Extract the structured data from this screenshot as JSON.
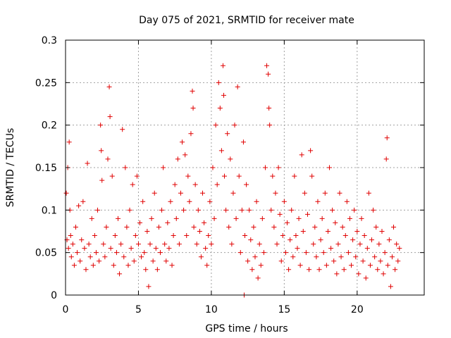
{
  "chart_data": {
    "type": "scatter",
    "title": "Day 075 of 2021, SRMTID for receiver mate",
    "xlabel": "GPS time / hours",
    "ylabel": "SRMTID / TECUs",
    "xlim": [
      0,
      24.6
    ],
    "ylim": [
      0,
      0.3
    ],
    "xticks": [
      0,
      5,
      10,
      15,
      20
    ],
    "xtick_labels": [
      "0",
      "5",
      "10",
      "15",
      "20"
    ],
    "yticks": [
      0,
      0.05,
      0.1,
      0.15,
      0.2,
      0.25,
      0.3
    ],
    "ytick_labels": [
      "0",
      "0.05",
      "0.1",
      "0.15",
      "0.2",
      "0.25",
      "0.3"
    ],
    "grid": true,
    "marker": "+",
    "marker_color": "#e00000",
    "series": [
      {
        "name": "SRMTID",
        "points": [
          [
            0.05,
            0.12
          ],
          [
            0.1,
            0.065
          ],
          [
            0.15,
            0.15
          ],
          [
            0.2,
            0.055
          ],
          [
            0.25,
            0.18
          ],
          [
            0.3,
            0.1
          ],
          [
            0.35,
            0.07
          ],
          [
            0.4,
            0.045
          ],
          [
            0.5,
            0.06
          ],
          [
            0.6,
            0.035
          ],
          [
            0.7,
            0.08
          ],
          [
            0.8,
            0.05
          ],
          [
            0.9,
            0.105
          ],
          [
            1.0,
            0.04
          ],
          [
            1.1,
            0.065
          ],
          [
            1.2,
            0.11
          ],
          [
            1.3,
            0.055
          ],
          [
            1.4,
            0.03
          ],
          [
            1.5,
            0.155
          ],
          [
            1.6,
            0.06
          ],
          [
            1.7,
            0.045
          ],
          [
            1.8,
            0.09
          ],
          [
            1.9,
            0.035
          ],
          [
            2.0,
            0.07
          ],
          [
            2.1,
            0.05
          ],
          [
            2.2,
            0.1
          ],
          [
            2.3,
            0.04
          ],
          [
            2.4,
            0.2
          ],
          [
            2.45,
            0.17
          ],
          [
            2.5,
            0.135
          ],
          [
            2.6,
            0.06
          ],
          [
            2.7,
            0.045
          ],
          [
            2.8,
            0.08
          ],
          [
            2.9,
            0.16
          ],
          [
            3.0,
            0.245
          ],
          [
            3.05,
            0.21
          ],
          [
            3.1,
            0.055
          ],
          [
            3.2,
            0.14
          ],
          [
            3.3,
            0.035
          ],
          [
            3.4,
            0.07
          ],
          [
            3.5,
            0.05
          ],
          [
            3.6,
            0.09
          ],
          [
            3.7,
            0.025
          ],
          [
            3.8,
            0.06
          ],
          [
            3.9,
            0.195
          ],
          [
            4.0,
            0.045
          ],
          [
            4.1,
            0.15
          ],
          [
            4.2,
            0.08
          ],
          [
            4.3,
            0.035
          ],
          [
            4.4,
            0.1
          ],
          [
            4.5,
            0.055
          ],
          [
            4.6,
            0.13
          ],
          [
            4.7,
            0.04
          ],
          [
            4.8,
            0.07
          ],
          [
            4.9,
            0.14
          ],
          [
            5.0,
            0.06
          ],
          [
            5.1,
            0.085
          ],
          [
            5.2,
            0.045
          ],
          [
            5.3,
            0.11
          ],
          [
            5.4,
            0.05
          ],
          [
            5.5,
            0.03
          ],
          [
            5.6,
            0.075
          ],
          [
            5.7,
            0.01
          ],
          [
            5.8,
            0.06
          ],
          [
            5.9,
            0.09
          ],
          [
            6.0,
            0.04
          ],
          [
            6.1,
            0.12
          ],
          [
            6.2,
            0.055
          ],
          [
            6.3,
            0.03
          ],
          [
            6.4,
            0.08
          ],
          [
            6.5,
            0.05
          ],
          [
            6.6,
            0.1
          ],
          [
            6.7,
            0.15
          ],
          [
            6.8,
            0.06
          ],
          [
            6.9,
            0.04
          ],
          [
            7.0,
            0.085
          ],
          [
            7.1,
            0.055
          ],
          [
            7.2,
            0.11
          ],
          [
            7.3,
            0.035
          ],
          [
            7.4,
            0.07
          ],
          [
            7.5,
            0.13
          ],
          [
            7.6,
            0.09
          ],
          [
            7.7,
            0.16
          ],
          [
            7.8,
            0.06
          ],
          [
            7.9,
            0.12
          ],
          [
            8.0,
            0.18
          ],
          [
            8.1,
            0.1
          ],
          [
            8.2,
            0.165
          ],
          [
            8.3,
            0.07
          ],
          [
            8.4,
            0.14
          ],
          [
            8.5,
            0.11
          ],
          [
            8.6,
            0.19
          ],
          [
            8.7,
            0.24
          ],
          [
            8.75,
            0.22
          ],
          [
            8.8,
            0.08
          ],
          [
            8.9,
            0.13
          ],
          [
            9.0,
            0.06
          ],
          [
            9.1,
            0.1
          ],
          [
            9.2,
            0.075
          ],
          [
            9.3,
            0.045
          ],
          [
            9.4,
            0.12
          ],
          [
            9.5,
            0.085
          ],
          [
            9.6,
            0.055
          ],
          [
            9.7,
            0.035
          ],
          [
            9.8,
            0.07
          ],
          [
            9.9,
            0.11
          ],
          [
            10.0,
            0.06
          ],
          [
            10.1,
            0.15
          ],
          [
            10.2,
            0.09
          ],
          [
            10.3,
            0.2
          ],
          [
            10.4,
            0.13
          ],
          [
            10.5,
            0.25
          ],
          [
            10.6,
            0.22
          ],
          [
            10.7,
            0.17
          ],
          [
            10.8,
            0.27
          ],
          [
            10.85,
            0.235
          ],
          [
            10.9,
            0.14
          ],
          [
            11.0,
            0.1
          ],
          [
            11.1,
            0.19
          ],
          [
            11.2,
            0.08
          ],
          [
            11.3,
            0.16
          ],
          [
            11.4,
            0.06
          ],
          [
            11.5,
            0.12
          ],
          [
            11.6,
            0.2
          ],
          [
            11.7,
            0.09
          ],
          [
            11.8,
            0.245
          ],
          [
            11.9,
            0.14
          ],
          [
            12.0,
            0.05
          ],
          [
            12.1,
            0.1
          ],
          [
            12.2,
            0.18
          ],
          [
            12.25,
            0.0
          ],
          [
            12.3,
            0.07
          ],
          [
            12.4,
            0.13
          ],
          [
            12.5,
            0.04
          ],
          [
            12.6,
            0.1
          ],
          [
            12.7,
            0.065
          ],
          [
            12.8,
            0.03
          ],
          [
            12.9,
            0.08
          ],
          [
            13.0,
            0.045
          ],
          [
            13.1,
            0.11
          ],
          [
            13.2,
            0.02
          ],
          [
            13.3,
            0.06
          ],
          [
            13.4,
            0.035
          ],
          [
            13.5,
            0.09
          ],
          [
            13.6,
            0.05
          ],
          [
            13.7,
            0.15
          ],
          [
            13.8,
            0.27
          ],
          [
            13.9,
            0.26
          ],
          [
            13.95,
            0.22
          ],
          [
            14.0,
            0.2
          ],
          [
            14.1,
            0.1
          ],
          [
            14.2,
            0.14
          ],
          [
            14.3,
            0.08
          ],
          [
            14.4,
            0.12
          ],
          [
            14.5,
            0.06
          ],
          [
            14.6,
            0.15
          ],
          [
            14.7,
            0.095
          ],
          [
            14.8,
            0.04
          ],
          [
            14.9,
            0.07
          ],
          [
            15.0,
            0.11
          ],
          [
            15.1,
            0.05
          ],
          [
            15.2,
            0.085
          ],
          [
            15.3,
            0.03
          ],
          [
            15.4,
            0.065
          ],
          [
            15.5,
            0.1
          ],
          [
            15.6,
            0.045
          ],
          [
            15.7,
            0.14
          ],
          [
            15.8,
            0.07
          ],
          [
            15.9,
            0.055
          ],
          [
            16.0,
            0.09
          ],
          [
            16.1,
            0.035
          ],
          [
            16.2,
            0.165
          ],
          [
            16.3,
            0.075
          ],
          [
            16.4,
            0.12
          ],
          [
            16.5,
            0.05
          ],
          [
            16.6,
            0.095
          ],
          [
            16.7,
            0.03
          ],
          [
            16.8,
            0.17
          ],
          [
            16.9,
            0.14
          ],
          [
            17.0,
            0.06
          ],
          [
            17.1,
            0.08
          ],
          [
            17.2,
            0.045
          ],
          [
            17.3,
            0.11
          ],
          [
            17.4,
            0.03
          ],
          [
            17.5,
            0.065
          ],
          [
            17.6,
            0.09
          ],
          [
            17.7,
            0.05
          ],
          [
            17.8,
            0.12
          ],
          [
            17.9,
            0.035
          ],
          [
            18.0,
            0.075
          ],
          [
            18.1,
            0.15
          ],
          [
            18.2,
            0.055
          ],
          [
            18.3,
            0.1
          ],
          [
            18.4,
            0.04
          ],
          [
            18.5,
            0.085
          ],
          [
            18.6,
            0.025
          ],
          [
            18.7,
            0.06
          ],
          [
            18.8,
            0.12
          ],
          [
            18.9,
            0.045
          ],
          [
            19.0,
            0.08
          ],
          [
            19.1,
            0.03
          ],
          [
            19.2,
            0.07
          ],
          [
            19.3,
            0.11
          ],
          [
            19.4,
            0.05
          ],
          [
            19.5,
            0.09
          ],
          [
            19.6,
            0.035
          ],
          [
            19.7,
            0.065
          ],
          [
            19.8,
            0.1
          ],
          [
            19.9,
            0.045
          ],
          [
            20.0,
            0.075
          ],
          [
            20.1,
            0.025
          ],
          [
            20.2,
            0.06
          ],
          [
            20.3,
            0.09
          ],
          [
            20.4,
            0.04
          ],
          [
            20.5,
            0.07
          ],
          [
            20.6,
            0.02
          ],
          [
            20.7,
            0.055
          ],
          [
            20.8,
            0.12
          ],
          [
            20.9,
            0.035
          ],
          [
            21.0,
            0.065
          ],
          [
            21.1,
            0.1
          ],
          [
            21.2,
            0.045
          ],
          [
            21.3,
            0.08
          ],
          [
            21.4,
            0.03
          ],
          [
            21.5,
            0.06
          ],
          [
            21.6,
            0.04
          ],
          [
            21.7,
            0.075
          ],
          [
            21.8,
            0.025
          ],
          [
            21.9,
            0.05
          ],
          [
            22.0,
            0.16
          ],
          [
            22.05,
            0.185
          ],
          [
            22.1,
            0.035
          ],
          [
            22.2,
            0.065
          ],
          [
            22.3,
            0.01
          ],
          [
            22.4,
            0.045
          ],
          [
            22.5,
            0.08
          ],
          [
            22.6,
            0.03
          ],
          [
            22.7,
            0.06
          ],
          [
            22.8,
            0.04
          ],
          [
            22.9,
            0.055
          ]
        ]
      }
    ]
  }
}
